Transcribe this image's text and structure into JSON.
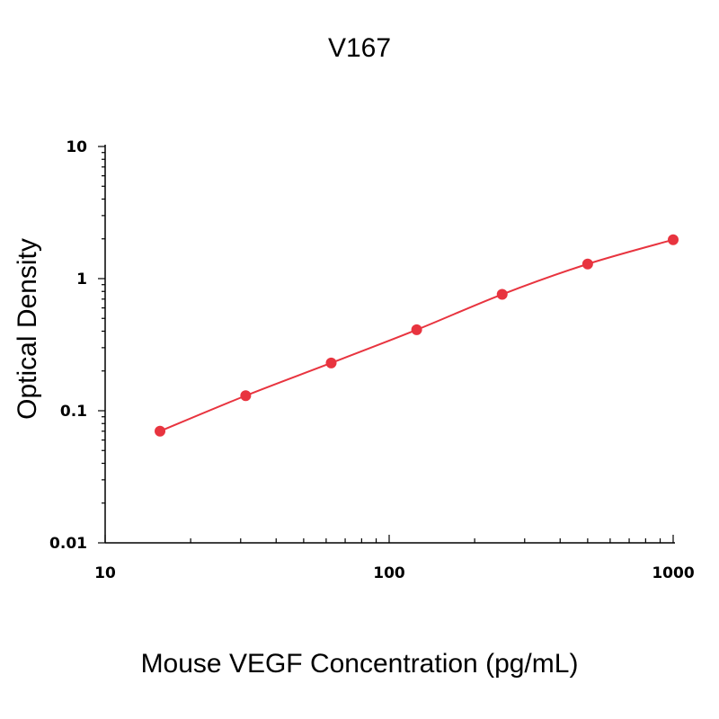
{
  "chart_data": {
    "type": "scatter",
    "title": "V167",
    "xlabel": "Mouse VEGF Concentration (pg/mL)",
    "ylabel": "Optical Density",
    "x_scale": "log",
    "y_scale": "log",
    "xlim": [
      10,
      1000
    ],
    "ylim": [
      0.01,
      10
    ],
    "x_ticks": [
      {
        "value": 10,
        "label": "10"
      },
      {
        "value": 100,
        "label": "100"
      },
      {
        "value": 1000,
        "label": "1000"
      }
    ],
    "y_ticks": [
      {
        "value": 0.01,
        "label": "0.01"
      },
      {
        "value": 0.1,
        "label": "0.1"
      },
      {
        "value": 1,
        "label": "1"
      },
      {
        "value": 10,
        "label": "10"
      }
    ],
    "grid": false,
    "legend": "none",
    "series": [
      {
        "x": [
          15.6,
          31.25,
          62.5,
          125,
          250,
          500,
          1000
        ],
        "y": [
          0.07,
          0.13,
          0.23,
          0.41,
          0.76,
          1.29,
          1.97
        ],
        "marker": "circle",
        "fit": "smooth curve",
        "color": "#e8343f"
      }
    ]
  }
}
